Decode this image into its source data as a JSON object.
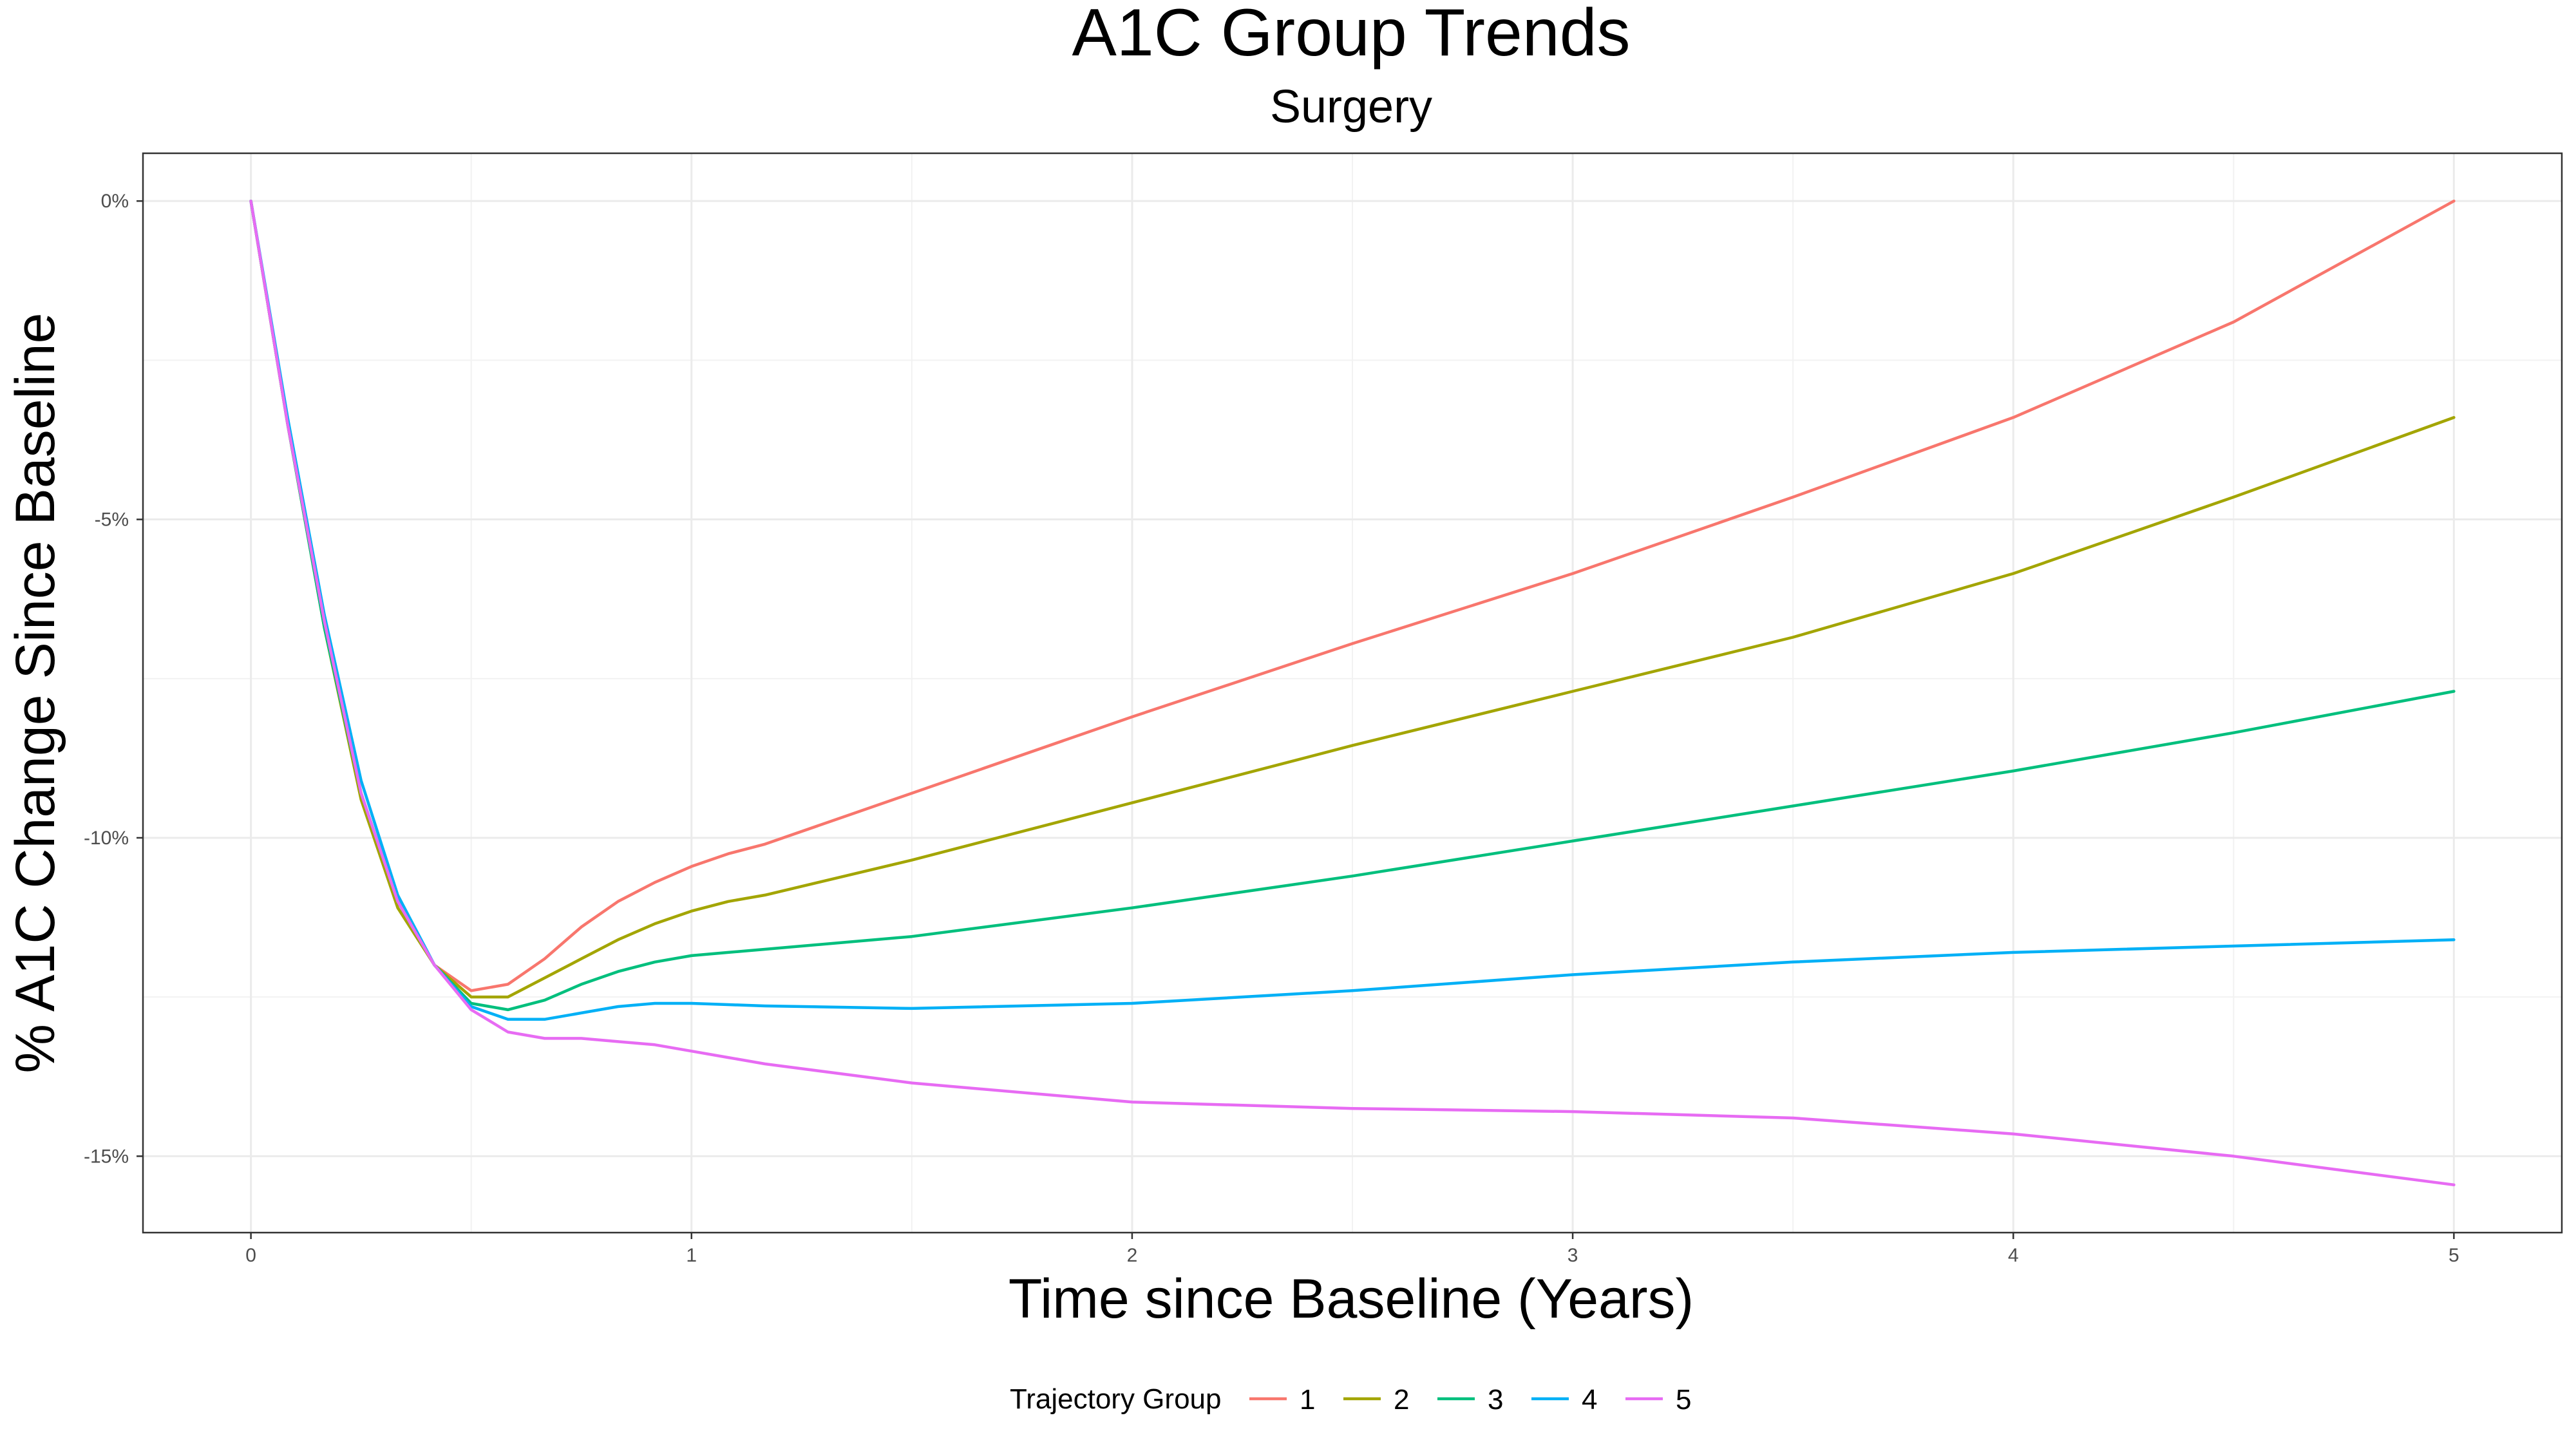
{
  "chart_data": {
    "type": "line",
    "title": "A1C Group Trends",
    "subtitle": "Surgery",
    "xlabel": "Time since Baseline (Years)",
    "ylabel": "% A1C Change Since Baseline",
    "xlim": [
      -0.245,
      5.245
    ],
    "ylim": [
      -16.2,
      0.75
    ],
    "x_ticks": [
      0,
      1,
      2,
      3,
      4,
      5
    ],
    "x_tick_labels": [
      "0",
      "1",
      "2",
      "3",
      "4",
      "5"
    ],
    "y_ticks": [
      0,
      -5,
      -10,
      -15
    ],
    "y_tick_labels": [
      "0%",
      "-5%",
      "-10%",
      "-15%"
    ],
    "grid": true,
    "legend": {
      "title": "Trajectory Group",
      "position": "bottom",
      "entries": [
        "1",
        "2",
        "3",
        "4",
        "5"
      ]
    },
    "x": [
      0,
      0.0833,
      0.1667,
      0.25,
      0.3333,
      0.4167,
      0.5,
      0.5833,
      0.6667,
      0.75,
      0.8333,
      0.9167,
      1.0,
      1.0833,
      1.1667,
      1.5,
      2.0,
      2.5,
      3.0,
      3.5,
      4.0,
      4.5,
      5.0
    ],
    "series": [
      {
        "name": "1",
        "color": "#F8766D",
        "values": [
          0,
          -3.5,
          -6.6,
          -9.3,
          -11.0,
          -12.0,
          -12.4,
          -12.3,
          -11.9,
          -11.4,
          -11.0,
          -10.7,
          -10.45,
          -10.25,
          -10.1,
          -9.3,
          -8.1,
          -6.95,
          -5.85,
          -4.65,
          -3.4,
          -1.9,
          0.0
        ]
      },
      {
        "name": "2",
        "color": "#A3A500",
        "values": [
          0,
          -3.5,
          -6.7,
          -9.4,
          -11.1,
          -12.0,
          -12.5,
          -12.5,
          -12.2,
          -11.9,
          -11.6,
          -11.35,
          -11.15,
          -11.0,
          -10.9,
          -10.35,
          -9.45,
          -8.55,
          -7.7,
          -6.85,
          -5.85,
          -4.65,
          -3.4
        ]
      },
      {
        "name": "3",
        "color": "#00BF7D",
        "values": [
          0,
          -3.5,
          -6.7,
          -9.3,
          -11.0,
          -12.0,
          -12.6,
          -12.7,
          -12.55,
          -12.3,
          -12.1,
          -11.95,
          -11.85,
          -11.8,
          -11.75,
          -11.55,
          -11.1,
          -10.6,
          -10.05,
          -9.5,
          -8.95,
          -8.35,
          -7.7
        ]
      },
      {
        "name": "4",
        "color": "#00B0F6",
        "values": [
          0,
          -3.4,
          -6.5,
          -9.1,
          -10.9,
          -12.0,
          -12.65,
          -12.85,
          -12.85,
          -12.75,
          -12.65,
          -12.6,
          -12.6,
          -12.62,
          -12.64,
          -12.68,
          -12.6,
          -12.4,
          -12.15,
          -11.95,
          -11.8,
          -11.7,
          -11.6
        ]
      },
      {
        "name": "5",
        "color": "#E76BF3",
        "values": [
          0,
          -3.5,
          -6.6,
          -9.3,
          -11.0,
          -12.0,
          -12.7,
          -13.05,
          -13.15,
          -13.15,
          -13.2,
          -13.25,
          -13.35,
          -13.45,
          -13.55,
          -13.85,
          -14.15,
          -14.25,
          -14.3,
          -14.4,
          -14.65,
          -15.0,
          -15.45
        ]
      }
    ]
  }
}
